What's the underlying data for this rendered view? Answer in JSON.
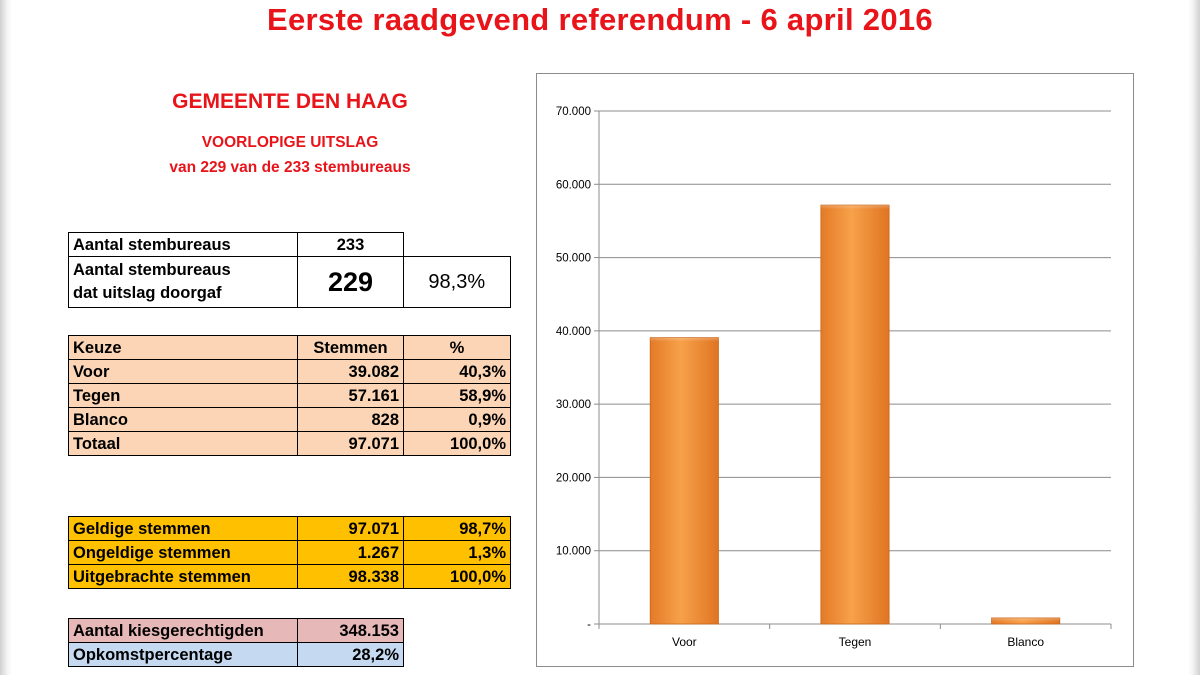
{
  "title": "Eerste raadgevend referendum - 6 april 2016",
  "municipality": "GEMEENTE DEN HAAG",
  "subtitle_1": "VOORLOPIGE UITSLAG",
  "subtitle_2": "van 229 van de 233 stembureaus",
  "stations": {
    "total_label": "Aantal stembureaus",
    "total_value": "233",
    "reported_label_1": "Aantal stembureaus",
    "reported_label_2": "dat uitslag doorgaf",
    "reported_value": "229",
    "reported_pct": "98,3%"
  },
  "results": {
    "headers": [
      "Keuze",
      "Stemmen",
      "%"
    ],
    "rows": [
      [
        "Voor",
        "39.082",
        "40,3%"
      ],
      [
        "Tegen",
        "57.161",
        "58,9%"
      ],
      [
        "Blanco",
        "828",
        "0,9%"
      ],
      [
        "Totaal",
        "97.071",
        "100,0%"
      ]
    ]
  },
  "validity": {
    "rows": [
      [
        "Geldige stemmen",
        "97.071",
        "98,7%"
      ],
      [
        "Ongeldige stemmen",
        "1.267",
        "1,3%"
      ],
      [
        "Uitgebrachte stemmen",
        "98.338",
        "100,0%"
      ]
    ]
  },
  "turnout": {
    "electorate_label": "Aantal kiesgerechtigden",
    "electorate_value": "348.153",
    "turnout_label": "Opkomstpercentage",
    "turnout_value": "28,2%"
  },
  "colors": {
    "title_red": "#e8141a",
    "bar_orange": "#f0903a",
    "peach": "#fbd5b5",
    "gold": "#ffc000",
    "rose": "#e6b8b7",
    "light_blue": "#c5d9f1"
  },
  "chart_data": {
    "type": "bar",
    "categories": [
      "Voor",
      "Tegen",
      "Blanco"
    ],
    "values": [
      39082,
      57161,
      828
    ],
    "ylim": [
      0,
      70000
    ],
    "y_ticks": [
      0,
      10000,
      20000,
      30000,
      40000,
      50000,
      60000,
      70000
    ],
    "y_tick_labels": [
      "-",
      "10.000",
      "20.000",
      "30.000",
      "40.000",
      "50.000",
      "60.000",
      "70.000"
    ],
    "grid": true,
    "legend": "none"
  }
}
